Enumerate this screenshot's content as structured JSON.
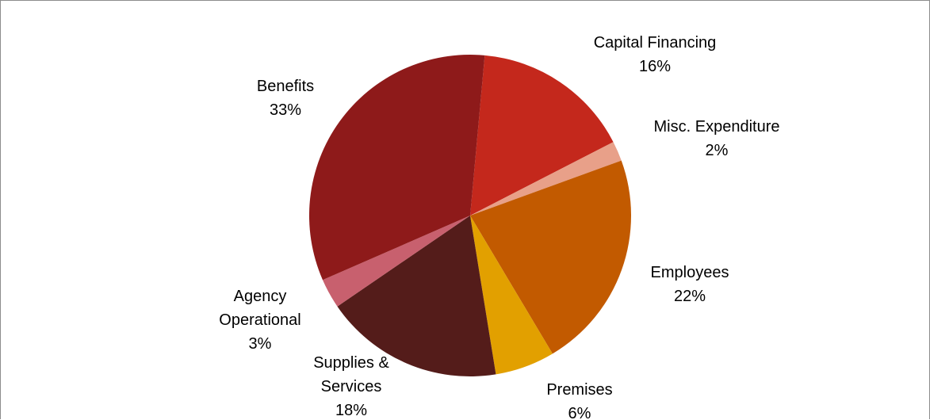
{
  "chart_data": {
    "type": "pie",
    "title": "",
    "legend": "none",
    "slices": [
      {
        "name": "Capital Financing",
        "label_lines": [
          "Capital Financing",
          "16%"
        ],
        "value": 16,
        "color": "#C4281C"
      },
      {
        "name": "Misc. Expenditure",
        "label_lines": [
          "Misc. Expenditure",
          "2%"
        ],
        "value": 2,
        "color": "#E8A089"
      },
      {
        "name": "Employees",
        "label_lines": [
          "Employees",
          "22%"
        ],
        "value": 22,
        "color": "#C25A00"
      },
      {
        "name": "Premises",
        "label_lines": [
          "Premises",
          "6%"
        ],
        "value": 6,
        "color": "#E2A000"
      },
      {
        "name": "Supplies & Services",
        "label_lines": [
          "Supplies &",
          "Services",
          "18%"
        ],
        "value": 18,
        "color": "#541C1A"
      },
      {
        "name": "Agency Operational",
        "label_lines": [
          "Agency",
          "Operational",
          "3%"
        ],
        "value": 3,
        "color": "#C8606E"
      },
      {
        "name": "Benefits",
        "label_lines": [
          "Benefits",
          "33%"
        ],
        "value": 33,
        "color": "#8E1A1A"
      }
    ]
  }
}
